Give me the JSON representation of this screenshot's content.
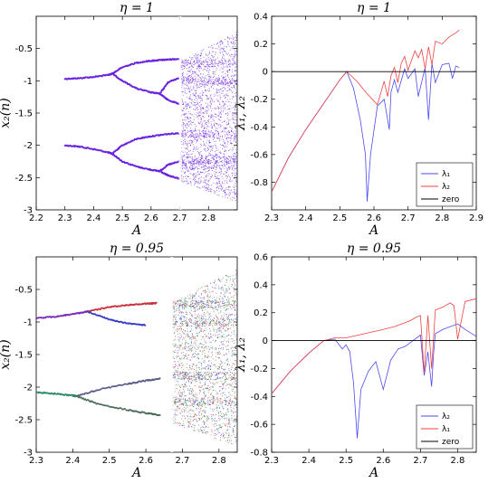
{
  "chart_data": [
    {
      "id": "tl",
      "type": "scatter",
      "title": "η = 1",
      "xlabel": "A",
      "ylabel": "x₂(n)",
      "xlim": [
        2.2,
        2.9
      ],
      "ylim": [
        -3,
        0
      ],
      "xticks": [
        2.2,
        2.3,
        2.4,
        2.5,
        2.6,
        2.7,
        2.8
      ],
      "yticks": [
        -3,
        -2.5,
        -2,
        -1.5,
        -1,
        -0.5
      ],
      "colors": [
        "#6a1fe0",
        "#7b3cf0",
        "#5a12d0"
      ],
      "branches": [
        {
          "x": [
            2.3,
            2.35,
            2.4,
            2.45,
            2.465
          ],
          "y": [
            -0.97,
            -0.96,
            -0.94,
            -0.91,
            -0.89
          ]
        },
        {
          "x": [
            2.3,
            2.35,
            2.4,
            2.45,
            2.465
          ],
          "y": [
            -2.0,
            -2.02,
            -2.06,
            -2.11,
            -2.13
          ]
        },
        {
          "x": [
            2.465,
            2.5,
            2.55,
            2.6,
            2.63,
            2.66,
            2.7
          ],
          "y": [
            -0.89,
            -0.79,
            -0.72,
            -0.69,
            -0.68,
            -0.67,
            -0.66
          ]
        },
        {
          "x": [
            2.465,
            2.5,
            2.55,
            2.6,
            2.63
          ],
          "y": [
            -0.89,
            -1.0,
            -1.12,
            -1.18,
            -1.2
          ]
        },
        {
          "x": [
            2.63,
            2.66,
            2.7
          ],
          "y": [
            -1.2,
            -1.02,
            -0.95
          ]
        },
        {
          "x": [
            2.63,
            2.66,
            2.7
          ],
          "y": [
            -1.2,
            -1.3,
            -1.36
          ]
        },
        {
          "x": [
            2.465,
            2.5,
            2.55,
            2.6,
            2.65,
            2.7
          ],
          "y": [
            -2.13,
            -2.0,
            -1.9,
            -1.86,
            -1.83,
            -1.81
          ]
        },
        {
          "x": [
            2.465,
            2.5,
            2.55,
            2.6,
            2.63
          ],
          "y": [
            -2.13,
            -2.25,
            -2.33,
            -2.38,
            -2.4
          ]
        },
        {
          "x": [
            2.63,
            2.66,
            2.7
          ],
          "y": [
            -2.4,
            -2.3,
            -2.25
          ]
        },
        {
          "x": [
            2.63,
            2.66,
            2.7
          ],
          "y": [
            -2.4,
            -2.47,
            -2.52
          ]
        }
      ],
      "chaos": {
        "xrange": [
          2.7,
          2.9
        ],
        "ytop": [
          -0.7,
          -0.22
        ],
        "ybot": [
          -2.55,
          -2.88
        ],
        "bands": [
          -0.72,
          -1.0,
          -2.22,
          -2.3,
          -1.82
        ]
      }
    },
    {
      "id": "tr",
      "type": "line",
      "title": "η = 1",
      "xlabel": "A",
      "ylabel": "λ₁, λ₂",
      "xlim": [
        2.3,
        2.9
      ],
      "ylim": [
        -1,
        0.4
      ],
      "xticks": [
        2.3,
        2.4,
        2.5,
        2.6,
        2.7,
        2.8,
        2.9
      ],
      "yticks": [
        -0.8,
        -0.6,
        -0.4,
        -0.2,
        0,
        0.2,
        0.4
      ],
      "legend": "bottom-right",
      "series": [
        {
          "name": "λ₁",
          "color": "#4a4af0",
          "x": [
            2.3,
            2.35,
            2.4,
            2.45,
            2.5,
            2.52,
            2.54,
            2.56,
            2.575,
            2.58,
            2.59,
            2.61,
            2.63,
            2.645,
            2.65,
            2.66,
            2.67,
            2.69,
            2.7,
            2.72,
            2.73,
            2.75,
            2.76,
            2.77,
            2.78,
            2.8,
            2.82,
            2.83,
            2.84,
            2.85
          ],
          "y": [
            -0.87,
            -0.62,
            -0.42,
            -0.24,
            -0.06,
            0.0,
            -0.12,
            -0.35,
            -0.6,
            -0.94,
            -0.6,
            -0.25,
            -0.2,
            -0.42,
            -0.15,
            -0.06,
            -0.15,
            0.02,
            -0.05,
            0.02,
            -0.18,
            0.03,
            -0.35,
            0.06,
            -0.08,
            0.05,
            0.06,
            -0.05,
            0.04,
            0.03
          ]
        },
        {
          "name": "λ₂",
          "color": "#f04040",
          "x": [
            2.3,
            2.35,
            2.4,
            2.45,
            2.5,
            2.52,
            2.55,
            2.58,
            2.61,
            2.63,
            2.64,
            2.65,
            2.66,
            2.67,
            2.68,
            2.69,
            2.7,
            2.72,
            2.73,
            2.74,
            2.75,
            2.76,
            2.77,
            2.78,
            2.8,
            2.82,
            2.84,
            2.85
          ],
          "y": [
            -0.87,
            -0.62,
            -0.42,
            -0.24,
            -0.06,
            0.0,
            -0.07,
            -0.16,
            -0.24,
            -0.07,
            -0.18,
            -0.03,
            0.03,
            -0.08,
            0.06,
            0.11,
            0.01,
            0.15,
            0.1,
            0.16,
            0.02,
            0.18,
            0.05,
            0.22,
            0.2,
            0.25,
            0.28,
            0.3
          ]
        },
        {
          "name": "zero",
          "color": "#000000",
          "x": [
            2.3,
            2.9
          ],
          "y": [
            0,
            0
          ]
        }
      ]
    },
    {
      "id": "bl",
      "type": "scatter",
      "title": "η = 0.95",
      "xlabel": "A",
      "ylabel": "x₂(n)",
      "xlim": [
        2.3,
        2.85
      ],
      "ylim": [
        -3,
        0
      ],
      "xticks": [
        2.3,
        2.4,
        2.5,
        2.6,
        2.7,
        2.8
      ],
      "yticks": [
        -3,
        -2.5,
        -2,
        -1.5,
        -1,
        -0.5
      ],
      "colors": [
        "#2a3ad8",
        "#d02828",
        "#2a9a3a"
      ],
      "branches": [
        {
          "x": [
            2.3,
            2.35,
            2.4,
            2.44
          ],
          "y": [
            -0.94,
            -0.92,
            -0.88,
            -0.84
          ],
          "color": "#7a2ab8"
        },
        {
          "x": [
            2.44,
            2.5,
            2.55,
            2.6,
            2.63
          ],
          "y": [
            -0.84,
            -0.77,
            -0.74,
            -0.72,
            -0.71
          ],
          "color": "#c83040"
        },
        {
          "x": [
            2.44,
            2.5,
            2.55,
            2.6
          ],
          "y": [
            -0.84,
            -0.96,
            -1.02,
            -1.05
          ],
          "color": "#3a3ac8"
        },
        {
          "x": [
            2.3,
            2.35,
            2.4,
            2.41
          ],
          "y": [
            -2.08,
            -2.1,
            -2.13,
            -2.14
          ],
          "color": "#2a8a6a"
        },
        {
          "x": [
            2.41,
            2.47,
            2.55,
            2.6,
            2.64
          ],
          "y": [
            -2.14,
            -2.04,
            -1.95,
            -1.9,
            -1.87
          ],
          "color": "#5a5a8a"
        },
        {
          "x": [
            2.41,
            2.47,
            2.55,
            2.6,
            2.64
          ],
          "y": [
            -2.14,
            -2.26,
            -2.35,
            -2.4,
            -2.43
          ],
          "color": "#4a6a5a"
        }
      ],
      "chaos": {
        "xrange": [
          2.67,
          2.85
        ],
        "ytop": [
          -0.7,
          -0.17
        ],
        "ybot": [
          -2.55,
          -2.9
        ],
        "bands": [
          -0.72,
          -1.0,
          -2.22,
          -1.82
        ]
      }
    },
    {
      "id": "br",
      "type": "line",
      "title": "η = 0.95",
      "xlabel": "A",
      "ylabel": "λ₁, λ₂",
      "xlim": [
        2.3,
        2.85
      ],
      "ylim": [
        -0.8,
        0.6
      ],
      "xticks": [
        2.3,
        2.4,
        2.5,
        2.6,
        2.7,
        2.8
      ],
      "yticks": [
        -0.8,
        -0.6,
        -0.4,
        -0.2,
        0,
        0.2,
        0.4,
        0.6
      ],
      "legend": "bottom-right",
      "series": [
        {
          "name": "λ₂",
          "color": "#4a4af0",
          "x": [
            2.3,
            2.35,
            2.4,
            2.44,
            2.47,
            2.49,
            2.5,
            2.51,
            2.52,
            2.53,
            2.54,
            2.56,
            2.58,
            2.6,
            2.62,
            2.64,
            2.66,
            2.68,
            2.7,
            2.71,
            2.72,
            2.73,
            2.735,
            2.74,
            2.76,
            2.78,
            2.8,
            2.82,
            2.85
          ],
          "y": [
            -0.38,
            -0.22,
            -0.09,
            0.0,
            0.01,
            -0.06,
            -0.03,
            -0.08,
            -0.3,
            -0.7,
            -0.35,
            -0.22,
            -0.15,
            -0.35,
            -0.14,
            -0.06,
            -0.04,
            0.0,
            0.04,
            -0.25,
            -0.08,
            -0.33,
            -0.1,
            0.05,
            0.08,
            0.1,
            0.12,
            0.08,
            0.03
          ]
        },
        {
          "name": "λ₁",
          "color": "#f04040",
          "x": [
            2.3,
            2.35,
            2.4,
            2.44,
            2.47,
            2.5,
            2.55,
            2.6,
            2.63,
            2.65,
            2.67,
            2.69,
            2.7,
            2.71,
            2.72,
            2.73,
            2.74,
            2.76,
            2.78,
            2.79,
            2.8,
            2.82,
            2.85
          ],
          "y": [
            -0.38,
            -0.22,
            -0.09,
            0.0,
            0.02,
            0.02,
            0.05,
            0.08,
            0.1,
            0.12,
            0.14,
            0.17,
            0.18,
            -0.23,
            0.18,
            -0.2,
            0.22,
            0.24,
            0.27,
            0.25,
            0.01,
            0.28,
            0.3
          ]
        },
        {
          "name": "zero",
          "color": "#000000",
          "x": [
            2.3,
            2.85
          ],
          "y": [
            0,
            0
          ]
        }
      ]
    }
  ]
}
